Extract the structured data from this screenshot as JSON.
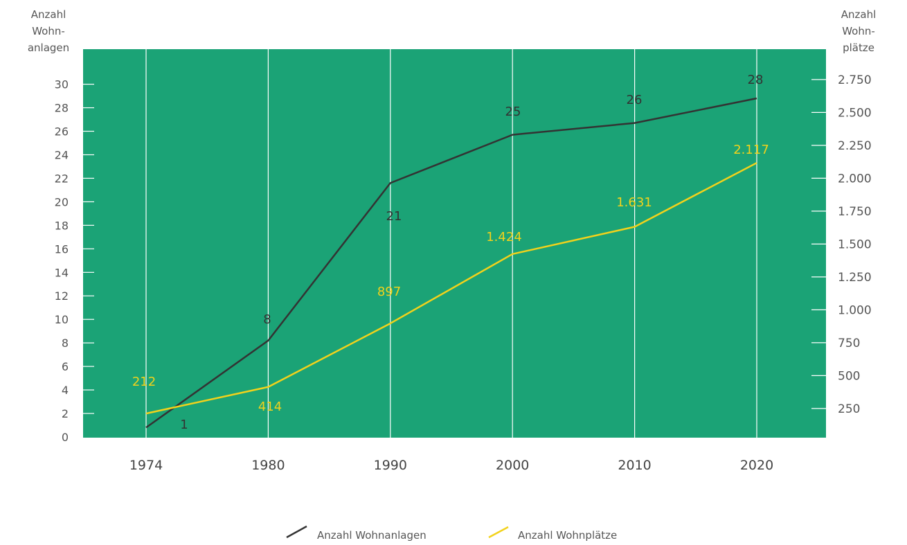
{
  "chart_data": {
    "type": "line",
    "categories": [
      "1974",
      "1980",
      "1990",
      "2000",
      "2010",
      "2020"
    ],
    "series": [
      {
        "name": "Anzahl Wohnanlagen",
        "axis": "left",
        "values": [
          1,
          8,
          21,
          25,
          26,
          28
        ],
        "plot_values": [
          0.8,
          8.2,
          21.6,
          25.7,
          26.7,
          28.8
        ],
        "labels": [
          "1",
          "8",
          "21",
          "25",
          "26",
          "28"
        ],
        "color": "#333333"
      },
      {
        "name": "Anzahl Wohnplätze",
        "axis": "right",
        "values": [
          212,
          414,
          897,
          1424,
          1631,
          2117
        ],
        "labels": [
          "212",
          "414",
          "897",
          "1.424",
          "1.631",
          "2.117"
        ],
        "color": "#f2d21b"
      }
    ],
    "y_left": {
      "label_lines": [
        "Anzahl",
        "Wohn-",
        "anlagen"
      ],
      "ticks": [
        0,
        2,
        4,
        6,
        8,
        10,
        12,
        14,
        16,
        18,
        20,
        22,
        24,
        26,
        28,
        30
      ],
      "ylim": [
        0,
        30
      ]
    },
    "y_right": {
      "label_lines": [
        "Anzahl",
        "Wohn-",
        "plätze"
      ],
      "ticks": [
        250,
        500,
        750,
        1000,
        1250,
        1500,
        1750,
        2000,
        2250,
        2500,
        2750
      ],
      "tick_labels": [
        "250",
        "500",
        "750",
        "1.000",
        "1.250",
        "1.500",
        "1.750",
        "2.000",
        "2.250",
        "2.500",
        "2.750"
      ]
    },
    "background_color": "#1ba376",
    "grid": "vertical lines at categories",
    "legend": "bottom-center"
  }
}
